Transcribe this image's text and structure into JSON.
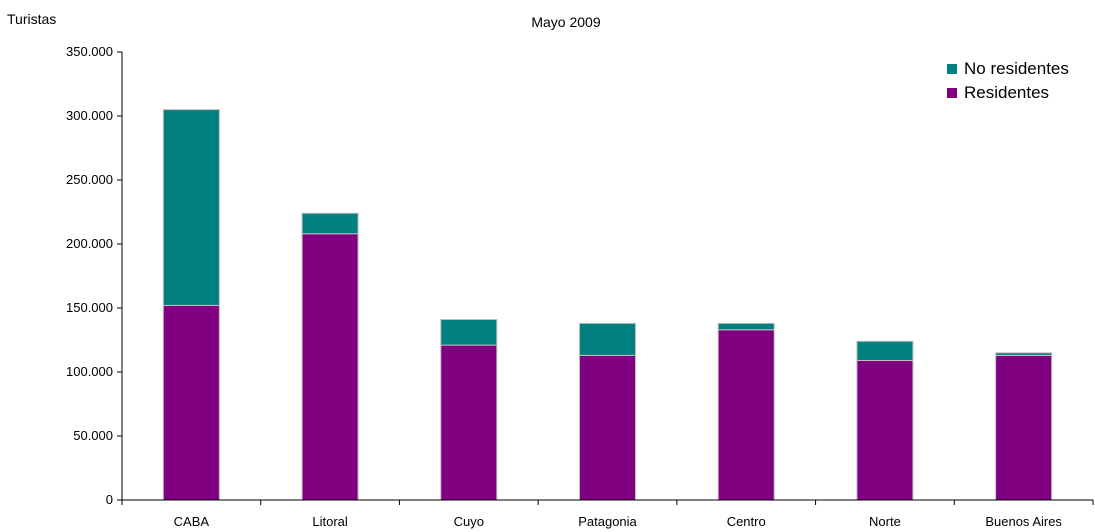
{
  "chart_data": {
    "type": "bar",
    "stacked": true,
    "title": "Mayo 2009",
    "ylabel": "Turistas",
    "xlabel": "",
    "categories": [
      "CABA",
      "Litoral",
      "Cuyo",
      "Patagonia",
      "Centro",
      "Norte",
      "Buenos Aires"
    ],
    "series": [
      {
        "name": "Residentes",
        "color": "#800080",
        "values": [
          152000,
          208000,
          121000,
          113000,
          133000,
          109000,
          113000
        ]
      },
      {
        "name": "No residentes",
        "color": "#008080",
        "values": [
          153000,
          16000,
          20000,
          25000,
          5000,
          15000,
          2000
        ]
      }
    ],
    "ylim": [
      0,
      350000
    ],
    "yticks": [
      0,
      50000,
      100000,
      150000,
      200000,
      250000,
      300000,
      350000
    ],
    "ytick_labels": [
      "0",
      "50.000",
      "100.000",
      "150.000",
      "200.000",
      "250.000",
      "300.000",
      "350.000"
    ],
    "grid": false,
    "legend": {
      "position": "top-right",
      "entries": [
        {
          "label": "No residentes",
          "color": "#008080"
        },
        {
          "label": "Residentes",
          "color": "#800080"
        }
      ]
    }
  }
}
